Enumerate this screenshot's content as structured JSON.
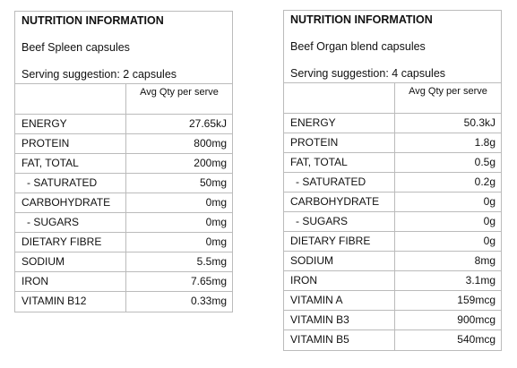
{
  "panels": [
    {
      "title": "NUTRITION INFORMATION",
      "product": "Beef Spleen capsules",
      "serving": "Serving suggestion: 2 capsules",
      "column_header": "Avg Qty per serve",
      "rows": [
        [
          "ENERGY",
          "27.65kJ"
        ],
        [
          "PROTEIN",
          "800mg"
        ],
        [
          "FAT, TOTAL",
          "200mg"
        ],
        [
          "- SATURATED",
          "50mg"
        ],
        [
          "CARBOHYDRATE",
          "0mg"
        ],
        [
          "- SUGARS",
          "0mg"
        ],
        [
          "DIETARY FIBRE",
          "0mg"
        ],
        [
          "SODIUM",
          "5.5mg"
        ],
        [
          "IRON",
          "7.65mg"
        ],
        [
          "VITAMIN B12",
          "0.33mg"
        ]
      ]
    },
    {
      "title": "NUTRITION INFORMATION",
      "product": "Beef Organ blend capsules",
      "serving": "Serving suggestion: 4 capsules",
      "column_header": "Avg Qty per serve",
      "rows": [
        [
          "ENERGY",
          "50.3kJ"
        ],
        [
          "PROTEIN",
          "1.8g"
        ],
        [
          "FAT, TOTAL",
          "0.5g"
        ],
        [
          "- SATURATED",
          "0.2g"
        ],
        [
          "CARBOHYDRATE",
          "0g"
        ],
        [
          "- SUGARS",
          "0g"
        ],
        [
          "DIETARY FIBRE",
          "0g"
        ],
        [
          "SODIUM",
          "8mg"
        ],
        [
          "IRON",
          "3.1mg"
        ],
        [
          "VITAMIN A",
          "159mcg"
        ],
        [
          "VITAMIN B3",
          "900mcg"
        ],
        [
          "VITAMIN B5",
          "540mcg"
        ]
      ]
    }
  ]
}
